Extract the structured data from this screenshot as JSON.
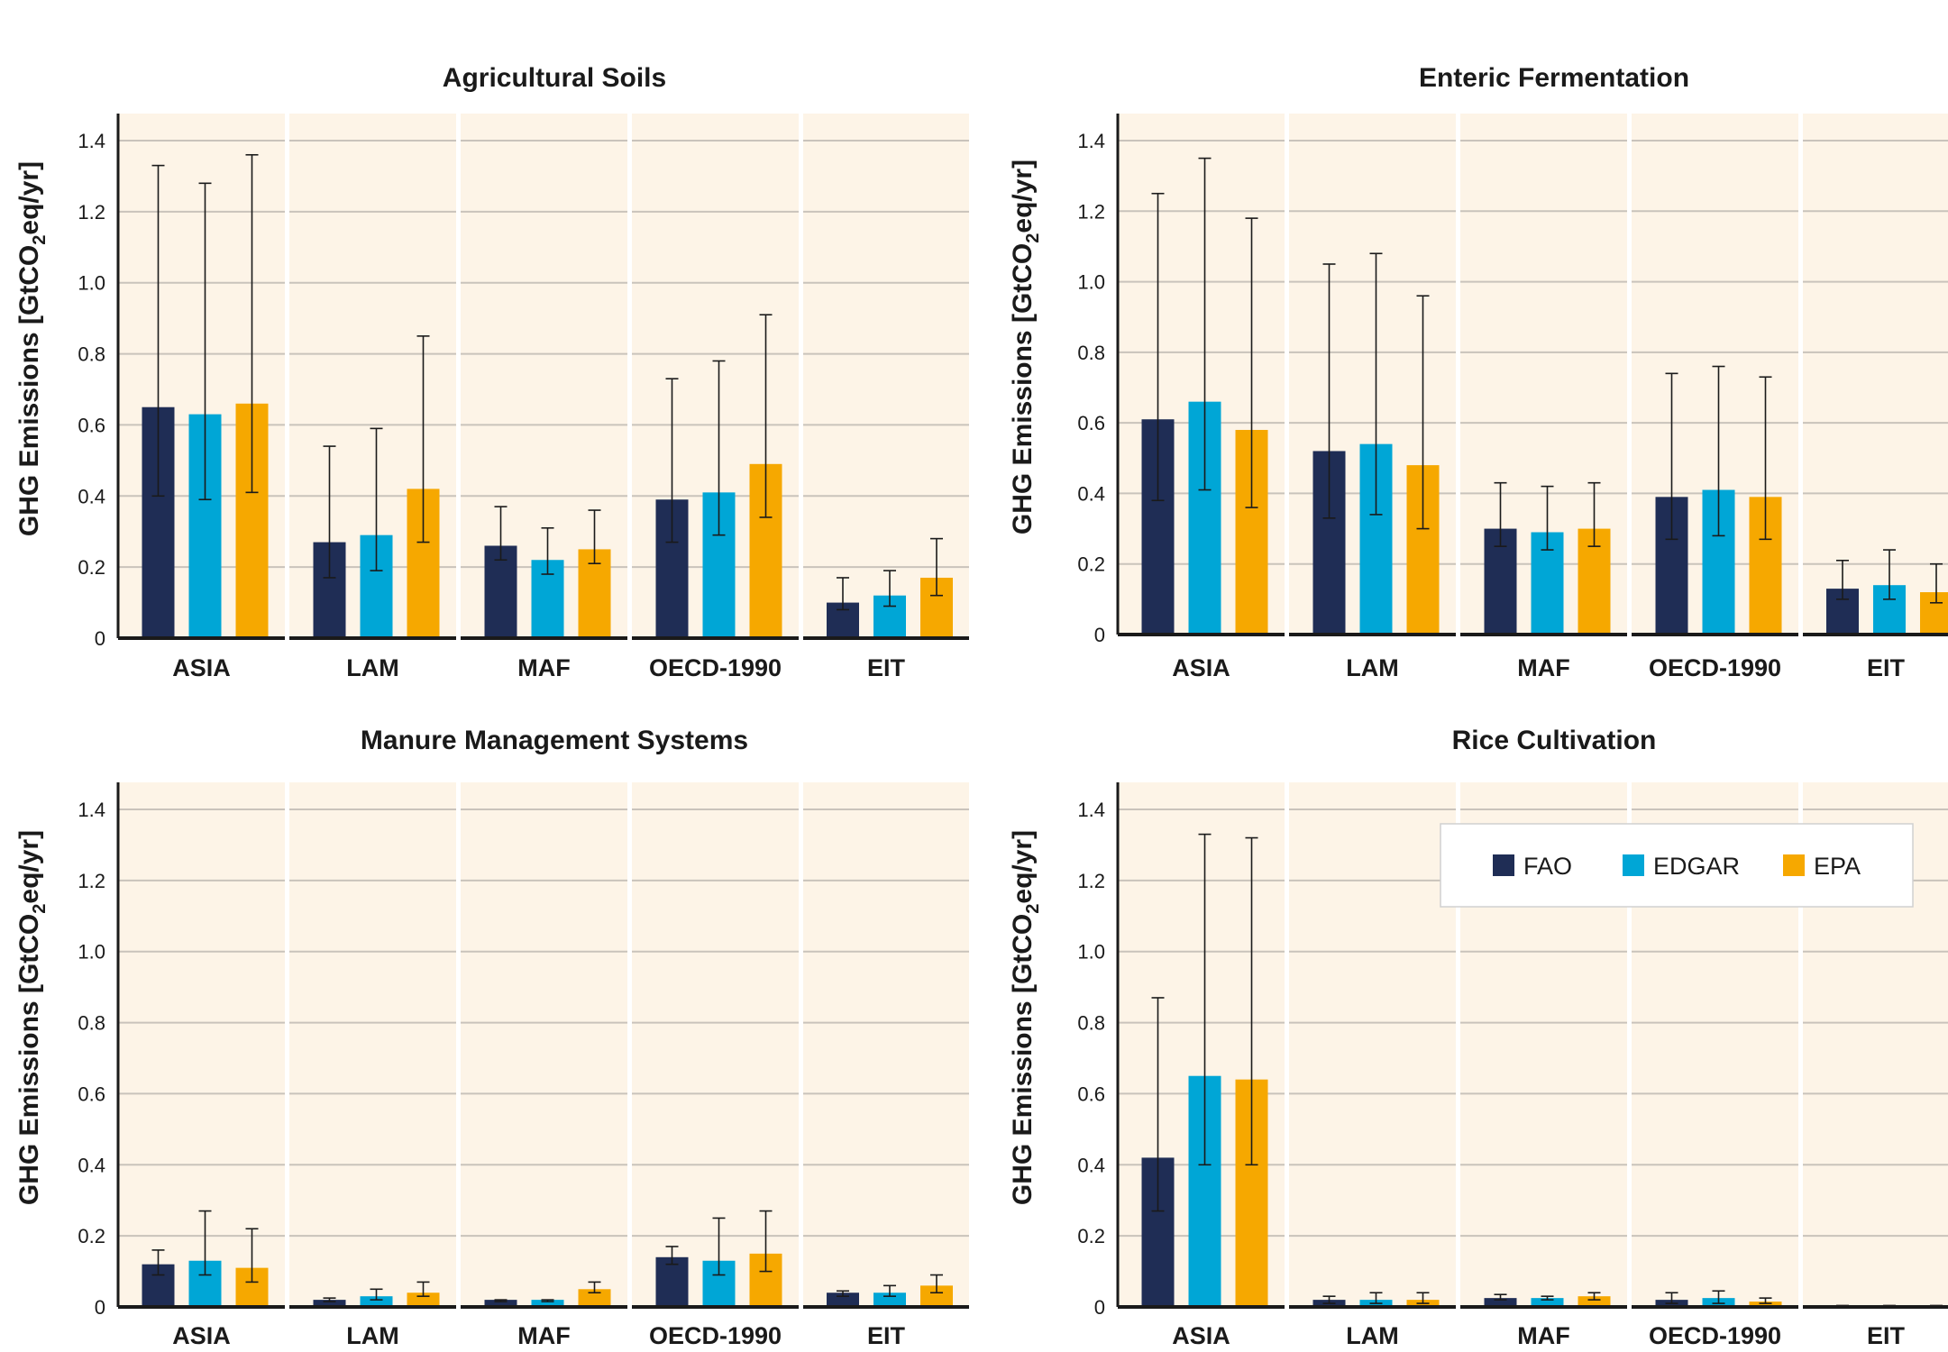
{
  "colors": {
    "FAO": "#1f2d55",
    "EDGAR": "#00a6d6",
    "EPA": "#f6a800",
    "panel_bg": "#fdf4e7",
    "grid": "#c9c3bb",
    "axis": "#1a1a1a"
  },
  "legend": [
    {
      "name": "FAO",
      "color": "#1f2d55"
    },
    {
      "name": "EDGAR",
      "color": "#00a6d6"
    },
    {
      "name": "EPA",
      "color": "#f6a800"
    }
  ],
  "chart_data": [
    {
      "type": "bar",
      "title": "Agricultural Soils",
      "ylabel": "GHG Emissions [GtCO2eq/yr]",
      "ylim": [
        0,
        1.4
      ],
      "yticks": [
        "0",
        "0.2",
        "0.4",
        "0.6",
        "0.8",
        "1.0",
        "1.2",
        "1.4"
      ],
      "categories": [
        "ASIA",
        "LAM",
        "MAF",
        "OECD-1990",
        "EIT"
      ],
      "series": [
        {
          "name": "FAO",
          "values": [
            0.65,
            0.27,
            0.26,
            0.39,
            0.1
          ],
          "err_low": [
            0.4,
            0.17,
            0.22,
            0.27,
            0.08
          ],
          "err_high": [
            1.33,
            0.54,
            0.37,
            0.73,
            0.17
          ]
        },
        {
          "name": "EDGAR",
          "values": [
            0.63,
            0.29,
            0.22,
            0.41,
            0.12
          ],
          "err_low": [
            0.39,
            0.19,
            0.18,
            0.29,
            0.09
          ],
          "err_high": [
            1.28,
            0.59,
            0.31,
            0.78,
            0.19
          ]
        },
        {
          "name": "EPA",
          "values": [
            0.66,
            0.42,
            0.25,
            0.49,
            0.17
          ],
          "err_low": [
            0.41,
            0.27,
            0.21,
            0.34,
            0.12
          ],
          "err_high": [
            1.36,
            0.85,
            0.36,
            0.91,
            0.28
          ]
        }
      ]
    },
    {
      "type": "bar",
      "title": "Enteric Fermentation",
      "ylabel": "GHG Emissions [GtCO2eq/yr]",
      "ylim": [
        0,
        1.4
      ],
      "yticks": [
        "0",
        "0.2",
        "0.4",
        "0.6",
        "0.8",
        "1.0",
        "1.2",
        "1.4"
      ],
      "categories": [
        "ASIA",
        "LAM",
        "MAF",
        "OECD-1990",
        "EIT"
      ],
      "series": [
        {
          "name": "FAO",
          "values": [
            0.61,
            0.52,
            0.3,
            0.39,
            0.13
          ],
          "err_low": [
            0.38,
            0.33,
            0.25,
            0.27,
            0.1
          ],
          "err_high": [
            1.25,
            1.05,
            0.43,
            0.74,
            0.21
          ]
        },
        {
          "name": "EDGAR",
          "values": [
            0.66,
            0.54,
            0.29,
            0.41,
            0.14
          ],
          "err_low": [
            0.41,
            0.34,
            0.24,
            0.28,
            0.1
          ],
          "err_high": [
            1.35,
            1.08,
            0.42,
            0.76,
            0.24
          ]
        },
        {
          "name": "EPA",
          "values": [
            0.58,
            0.48,
            0.3,
            0.39,
            0.12
          ],
          "err_low": [
            0.36,
            0.3,
            0.25,
            0.27,
            0.09
          ],
          "err_high": [
            1.18,
            0.96,
            0.43,
            0.73,
            0.2
          ]
        }
      ]
    },
    {
      "type": "bar",
      "title": "Manure Management Systems",
      "ylabel": "GHG Emissions [GtCO2eq/yr]",
      "ylim": [
        0,
        1.4
      ],
      "yticks": [
        "0",
        "0.2",
        "0.4",
        "0.6",
        "0.8",
        "1.0",
        "1.2",
        "1.4"
      ],
      "categories": [
        "ASIA",
        "LAM",
        "MAF",
        "OECD-1990",
        "EIT"
      ],
      "series": [
        {
          "name": "FAO",
          "values": [
            0.12,
            0.02,
            0.02,
            0.14,
            0.04
          ],
          "err_low": [
            0.09,
            0.015,
            0.015,
            0.12,
            0.03
          ],
          "err_high": [
            0.16,
            0.025,
            0.02,
            0.17,
            0.045
          ]
        },
        {
          "name": "EDGAR",
          "values": [
            0.13,
            0.03,
            0.02,
            0.13,
            0.04
          ],
          "err_low": [
            0.09,
            0.02,
            0.015,
            0.09,
            0.03
          ],
          "err_high": [
            0.27,
            0.05,
            0.02,
            0.25,
            0.06
          ]
        },
        {
          "name": "EPA",
          "values": [
            0.11,
            0.04,
            0.05,
            0.15,
            0.06
          ],
          "err_low": [
            0.07,
            0.03,
            0.04,
            0.1,
            0.04
          ],
          "err_high": [
            0.22,
            0.07,
            0.07,
            0.27,
            0.09
          ]
        }
      ]
    },
    {
      "type": "bar",
      "title": "Rice Cultivation",
      "ylabel": "GHG Emissions [GtCO2eq/yr]",
      "ylim": [
        0,
        1.4
      ],
      "yticks": [
        "0",
        "0.2",
        "0.4",
        "0.6",
        "0.8",
        "1.0",
        "1.2",
        "1.4"
      ],
      "categories": [
        "ASIA",
        "LAM",
        "MAF",
        "OECD-1990",
        "EIT"
      ],
      "series": [
        {
          "name": "FAO",
          "values": [
            0.42,
            0.02,
            0.025,
            0.02,
            0.003
          ],
          "err_low": [
            0.27,
            0.01,
            0.02,
            0.01,
            0.002
          ],
          "err_high": [
            0.87,
            0.03,
            0.035,
            0.04,
            0.004
          ]
        },
        {
          "name": "EDGAR",
          "values": [
            0.65,
            0.02,
            0.025,
            0.025,
            0.003
          ],
          "err_low": [
            0.4,
            0.01,
            0.02,
            0.01,
            0.002
          ],
          "err_high": [
            1.33,
            0.04,
            0.03,
            0.045,
            0.004
          ]
        },
        {
          "name": "EPA",
          "values": [
            0.64,
            0.02,
            0.03,
            0.015,
            0.003
          ],
          "err_low": [
            0.4,
            0.01,
            0.02,
            0.01,
            0.002
          ],
          "err_high": [
            1.32,
            0.04,
            0.04,
            0.025,
            0.004
          ]
        }
      ]
    }
  ]
}
